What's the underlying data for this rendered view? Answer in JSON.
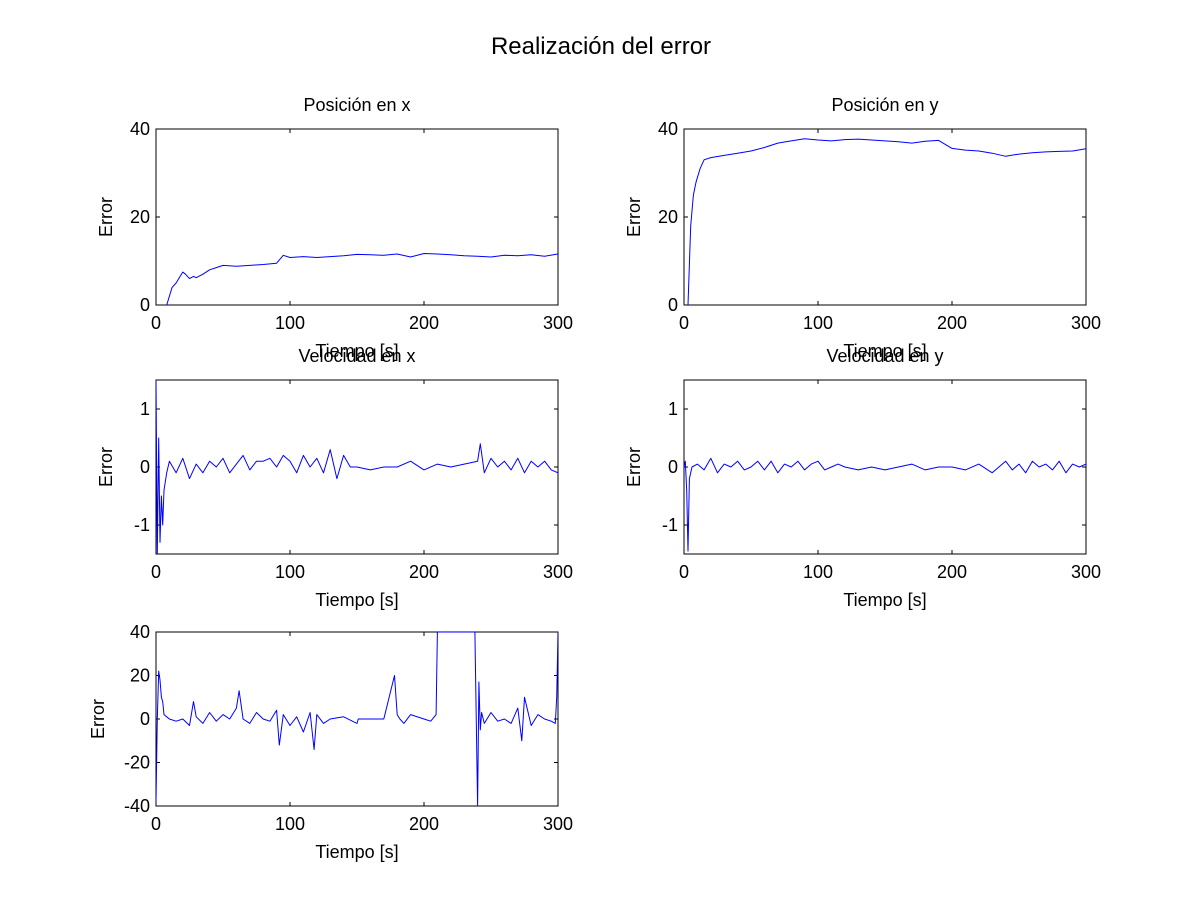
{
  "figure": {
    "title": "Realización del error",
    "line_color": "#0000ff",
    "axis_color": "#000000",
    "background": "#ffffff"
  },
  "chart_data": [
    {
      "type": "line",
      "title": "Posición en x",
      "xlabel": "Tiempo [s]",
      "ylabel": "Error",
      "xlim": [
        0,
        300
      ],
      "ylim": [
        0,
        40
      ],
      "xticks": [
        0,
        100,
        200,
        300
      ],
      "yticks": [
        0,
        20,
        40
      ],
      "grid": false,
      "series": [
        {
          "x": [
            8,
            10,
            12,
            15,
            18,
            20,
            22,
            25,
            28,
            30,
            35,
            40,
            45,
            50,
            60,
            70,
            80,
            90,
            95,
            100,
            110,
            120,
            130,
            140,
            150,
            160,
            170,
            180,
            190,
            200,
            210,
            220,
            230,
            240,
            250,
            260,
            270,
            280,
            290,
            300
          ],
          "y": [
            0,
            2,
            4,
            5,
            6.5,
            7.5,
            7,
            6,
            6.5,
            6.2,
            7,
            8,
            8.5,
            9,
            8.8,
            9,
            9.2,
            9.5,
            11.3,
            10.8,
            11,
            10.8,
            11,
            11.2,
            11.5,
            11.4,
            11.3,
            11.6,
            10.9,
            11.7,
            11.6,
            11.4,
            11.2,
            11.1,
            10.9,
            11.3,
            11.2,
            11.4,
            11.1,
            11.6
          ]
        }
      ]
    },
    {
      "type": "line",
      "title": "Posición en y",
      "xlabel": "Tiempo [s]",
      "ylabel": "Error",
      "xlim": [
        0,
        300
      ],
      "ylim": [
        0,
        40
      ],
      "xticks": [
        0,
        100,
        200,
        300
      ],
      "yticks": [
        0,
        20,
        40
      ],
      "grid": false,
      "series": [
        {
          "x": [
            3,
            5,
            7,
            9,
            12,
            15,
            20,
            30,
            40,
            50,
            60,
            70,
            80,
            90,
            100,
            110,
            120,
            130,
            140,
            150,
            160,
            170,
            180,
            190,
            195,
            200,
            210,
            220,
            230,
            240,
            250,
            260,
            270,
            280,
            290,
            300
          ],
          "y": [
            0,
            18,
            25,
            28,
            31,
            33,
            33.5,
            34,
            34.5,
            35,
            35.8,
            36.8,
            37.3,
            37.8,
            37.5,
            37.3,
            37.6,
            37.7,
            37.5,
            37.3,
            37.1,
            36.8,
            37.2,
            37.4,
            36.5,
            35.6,
            35.2,
            35,
            34.5,
            33.8,
            34.3,
            34.6,
            34.8,
            34.9,
            35,
            35.5
          ]
        }
      ]
    },
    {
      "type": "line",
      "title": "Velocidad en x",
      "xlabel": "Tiempo [s]",
      "ylabel": "Error",
      "xlim": [
        0,
        300
      ],
      "ylim": [
        -1.5,
        1.5
      ],
      "xticks": [
        0,
        100,
        200,
        300
      ],
      "yticks": [
        -1,
        0,
        1
      ],
      "grid": false,
      "series": [
        {
          "x": [
            0,
            1,
            2,
            3,
            4,
            5,
            6,
            8,
            10,
            15,
            20,
            25,
            30,
            35,
            40,
            45,
            50,
            55,
            60,
            65,
            70,
            75,
            80,
            85,
            90,
            95,
            100,
            105,
            110,
            115,
            120,
            125,
            130,
            135,
            140,
            145,
            150,
            160,
            170,
            180,
            190,
            200,
            210,
            220,
            230,
            240,
            242,
            245,
            250,
            255,
            260,
            265,
            270,
            275,
            280,
            285,
            290,
            295,
            300
          ],
          "y": [
            1.5,
            -1.5,
            0.5,
            -1.3,
            -0.5,
            -1.0,
            -0.4,
            -0.1,
            0.1,
            -0.1,
            0.15,
            -0.2,
            0.05,
            -0.1,
            0.1,
            0.0,
            0.15,
            -0.1,
            0.05,
            0.2,
            -0.05,
            0.1,
            0.1,
            0.15,
            0.0,
            0.2,
            0.1,
            -0.1,
            0.2,
            0.0,
            0.15,
            -0.1,
            0.3,
            -0.2,
            0.2,
            0.0,
            0.0,
            -0.05,
            0.0,
            0.0,
            0.1,
            -0.05,
            0.05,
            0.0,
            0.05,
            0.1,
            0.4,
            -0.1,
            0.15,
            0.0,
            0.1,
            -0.05,
            0.15,
            -0.1,
            0.1,
            0.0,
            0.1,
            -0.05,
            -0.1
          ]
        }
      ]
    },
    {
      "type": "line",
      "title": "Velocidad en y",
      "xlabel": "Tiempo [s]",
      "ylabel": "Error",
      "xlim": [
        0,
        300
      ],
      "ylim": [
        -1.5,
        1.5
      ],
      "xticks": [
        0,
        100,
        200,
        300
      ],
      "yticks": [
        -1,
        0,
        1
      ],
      "grid": false,
      "series": [
        {
          "x": [
            0,
            1,
            2,
            3,
            4,
            6,
            10,
            15,
            20,
            25,
            30,
            35,
            40,
            45,
            50,
            55,
            60,
            65,
            70,
            75,
            80,
            85,
            90,
            95,
            100,
            105,
            110,
            115,
            120,
            130,
            140,
            150,
            160,
            170,
            180,
            190,
            200,
            210,
            220,
            230,
            240,
            245,
            250,
            255,
            260,
            265,
            270,
            275,
            280,
            285,
            290,
            295,
            300
          ],
          "y": [
            0.0,
            0.1,
            -0.4,
            -1.45,
            -0.2,
            0.0,
            0.05,
            -0.05,
            0.15,
            -0.1,
            0.05,
            0.0,
            0.1,
            -0.05,
            0.0,
            0.1,
            -0.05,
            0.1,
            -0.1,
            0.05,
            0.0,
            0.1,
            -0.05,
            0.05,
            0.1,
            -0.05,
            0.0,
            0.05,
            0.0,
            -0.05,
            0.0,
            -0.05,
            0.0,
            0.05,
            -0.05,
            0.0,
            0.0,
            -0.05,
            0.05,
            -0.1,
            0.1,
            -0.05,
            0.05,
            -0.1,
            0.1,
            0.0,
            0.05,
            -0.05,
            0.1,
            -0.1,
            0.05,
            0.0,
            0.05
          ]
        }
      ]
    },
    {
      "type": "line",
      "title": "",
      "xlabel": "Tiempo [s]",
      "ylabel": "Error",
      "xlim": [
        0,
        300
      ],
      "ylim": [
        -40,
        40
      ],
      "xticks": [
        0,
        100,
        200,
        300
      ],
      "yticks": [
        -40,
        -20,
        0,
        20,
        40
      ],
      "grid": false,
      "series": [
        {
          "x": [
            0,
            1,
            2,
            3,
            4,
            5,
            6,
            8,
            10,
            15,
            20,
            25,
            28,
            30,
            35,
            40,
            45,
            50,
            55,
            60,
            62,
            65,
            70,
            75,
            80,
            85,
            90,
            92,
            95,
            100,
            105,
            110,
            115,
            118,
            120,
            125,
            130,
            140,
            150,
            151,
            160,
            170,
            178,
            180,
            182,
            185,
            190,
            200,
            205,
            209,
            210,
            211,
            220,
            238,
            240,
            241,
            242,
            243,
            245,
            250,
            255,
            260,
            265,
            270,
            273,
            275,
            280,
            285,
            290,
            295,
            298,
            299,
            300
          ],
          "y": [
            -38,
            0,
            22,
            18,
            10,
            8,
            2,
            1,
            0,
            -1,
            0,
            -3,
            8,
            1,
            -2,
            3,
            -1,
            2,
            0,
            5,
            13,
            0,
            -2,
            3,
            0,
            -1,
            4,
            -12,
            2,
            -3,
            1,
            -6,
            3,
            -14,
            2,
            -2,
            0,
            1,
            -2,
            0,
            0,
            0,
            20,
            2,
            0,
            -2,
            2,
            0,
            -1,
            2,
            40,
            40,
            40,
            40,
            -40,
            17,
            -5,
            3,
            -2,
            3,
            -1,
            0,
            -2,
            5,
            -10,
            10,
            -3,
            2,
            0,
            -1,
            -2,
            10,
            40
          ]
        }
      ]
    }
  ]
}
